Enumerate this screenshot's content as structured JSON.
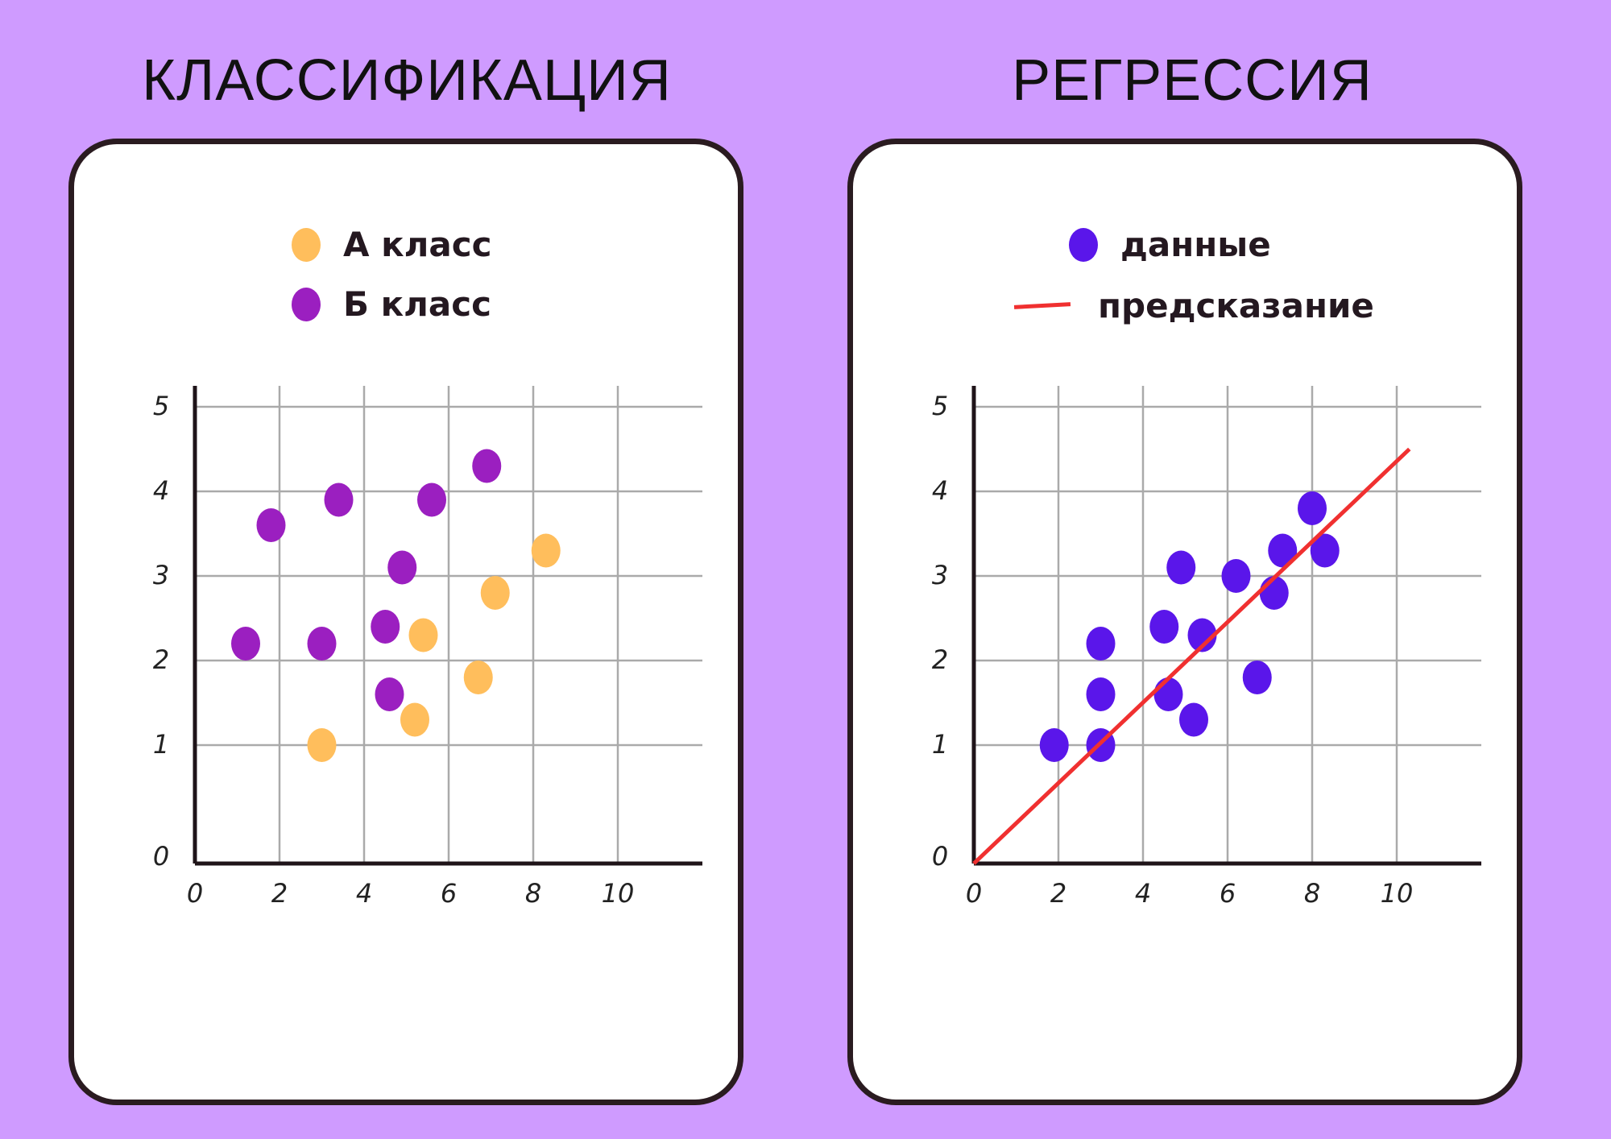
{
  "titles": {
    "left": "КЛАССИФИКАЦИЯ",
    "right": "РЕГРЕССИЯ"
  },
  "colors": {
    "background": "#cf9bff",
    "class_a": "#ffbe5c",
    "class_b": "#9b1fc0",
    "data": "#5a16ea",
    "prediction": "#f03030"
  },
  "chart_data": [
    {
      "type": "scatter",
      "title": "КЛАССИФИКАЦИЯ",
      "xlabel": "",
      "ylabel": "",
      "xlim": [
        0,
        12
      ],
      "ylim": [
        0,
        6
      ],
      "x_ticks": [
        "0",
        "2",
        "4",
        "6",
        "8",
        "10"
      ],
      "y_ticks": [
        "0",
        "1",
        "2",
        "3",
        "4",
        "5"
      ],
      "grid": true,
      "legend_position": "top",
      "series": [
        {
          "name": "А класс",
          "color": "#ffbe5c",
          "points": [
            [
              3.0,
              1.0
            ],
            [
              5.2,
              1.3
            ],
            [
              5.4,
              2.3
            ],
            [
              6.7,
              1.8
            ],
            [
              7.1,
              2.8
            ],
            [
              8.3,
              3.3
            ]
          ]
        },
        {
          "name": "Б класс",
          "color": "#9b1fc0",
          "points": [
            [
              1.2,
              2.2
            ],
            [
              1.8,
              3.6
            ],
            [
              3.0,
              2.2
            ],
            [
              3.4,
              3.9
            ],
            [
              4.5,
              2.4
            ],
            [
              4.6,
              1.6
            ],
            [
              4.9,
              3.1
            ],
            [
              5.6,
              3.9
            ],
            [
              6.9,
              4.3
            ]
          ]
        }
      ]
    },
    {
      "type": "scatter",
      "title": "РЕГРЕССИЯ",
      "xlabel": "",
      "ylabel": "",
      "xlim": [
        0,
        12
      ],
      "ylim": [
        0,
        6
      ],
      "x_ticks": [
        "0",
        "2",
        "4",
        "6",
        "8",
        "10"
      ],
      "y_ticks": [
        "0",
        "1",
        "2",
        "3",
        "4",
        "5"
      ],
      "grid": true,
      "legend_position": "top",
      "series": [
        {
          "name": "данные",
          "color": "#5a16ea",
          "points": [
            [
              1.9,
              1.0
            ],
            [
              3.0,
              1.0
            ],
            [
              3.0,
              1.6
            ],
            [
              3.0,
              2.2
            ],
            [
              4.5,
              2.4
            ],
            [
              4.6,
              1.6
            ],
            [
              4.9,
              3.1
            ],
            [
              5.2,
              1.3
            ],
            [
              5.4,
              2.3
            ],
            [
              6.2,
              3.0
            ],
            [
              6.7,
              1.8
            ],
            [
              7.1,
              2.8
            ],
            [
              7.3,
              3.3
            ],
            [
              8.0,
              3.8
            ],
            [
              8.3,
              3.3
            ]
          ]
        },
        {
          "name": "предсказание",
          "color": "#f03030",
          "kind": "line",
          "points": [
            [
              0,
              0
            ],
            [
              10.3,
              4.5
            ]
          ]
        }
      ]
    }
  ]
}
